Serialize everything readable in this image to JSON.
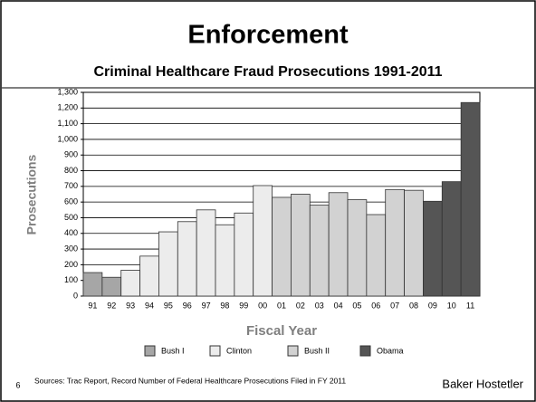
{
  "title": "Enforcement",
  "footer": {
    "page": "6",
    "source": "Sources: Trac Report, Record  Number of Federal Healthcare Prosecutions Filed in FY 2011",
    "brand": "Baker Hostetler"
  },
  "chart_data": {
    "type": "bar",
    "title": "Criminal Healthcare Fraud Prosecutions  1991-2011",
    "x_label": "Fiscal Year",
    "y_label": "Prosecutions",
    "categories": [
      "91",
      "92",
      "93",
      "94",
      "95",
      "96",
      "97",
      "98",
      "99",
      "00",
      "01",
      "02",
      "03",
      "04",
      "05",
      "06",
      "07",
      "08",
      "09",
      "10",
      "11"
    ],
    "series": [
      {
        "name": "Bush I",
        "color": "#a6a6a6",
        "values": [
          150,
          120,
          null,
          null,
          null,
          null,
          null,
          null,
          null,
          null,
          null,
          null,
          null,
          null,
          null,
          null,
          null,
          null,
          null,
          null,
          null
        ]
      },
      {
        "name": "Clinton",
        "color": "#ececec",
        "values": [
          null,
          null,
          165,
          255,
          410,
          475,
          550,
          455,
          530,
          705,
          null,
          null,
          null,
          null,
          null,
          null,
          null,
          null,
          null,
          null,
          null
        ]
      },
      {
        "name": "Bush II",
        "color": "#d2d2d2",
        "values": [
          null,
          null,
          null,
          null,
          null,
          null,
          null,
          null,
          null,
          null,
          630,
          650,
          580,
          660,
          615,
          520,
          680,
          675,
          null,
          null,
          null
        ]
      },
      {
        "name": "Obama",
        "color": "#555555",
        "values": [
          null,
          null,
          null,
          null,
          null,
          null,
          null,
          null,
          null,
          null,
          null,
          null,
          null,
          null,
          null,
          null,
          null,
          null,
          605,
          730,
          1235
        ]
      }
    ],
    "ylim": [
      0,
      1300
    ],
    "yticks": [
      0,
      100,
      200,
      300,
      400,
      500,
      600,
      700,
      800,
      900,
      {
        "value": 1000,
        "label": "1,000"
      },
      {
        "value": 1100,
        "label": "1,100"
      },
      {
        "value": 1200,
        "label": "1,200"
      },
      {
        "value": 1300,
        "label": "1,300"
      }
    ],
    "grid": true,
    "legend": "bottom"
  }
}
